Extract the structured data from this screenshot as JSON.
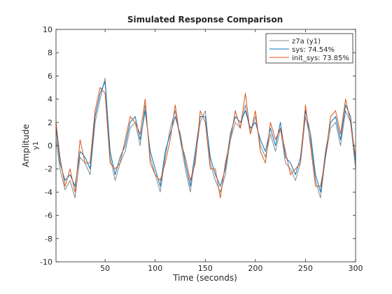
{
  "chart_data": {
    "type": "line",
    "title": "Simulated Response Comparison",
    "xlabel": "Time (seconds)",
    "ylabel": "Amplitude",
    "channel_label": "y1",
    "xlim": [
      1,
      300
    ],
    "ylim": [
      -10,
      10
    ],
    "x_ticks": [
      50,
      100,
      150,
      200,
      250,
      300
    ],
    "y_ticks": [
      -10,
      -8,
      -6,
      -4,
      -2,
      0,
      2,
      4,
      6,
      8,
      10
    ],
    "grid": false,
    "legend_position": "top-right",
    "x": [
      1,
      5,
      10,
      15,
      20,
      25,
      30,
      35,
      40,
      45,
      50,
      55,
      60,
      65,
      70,
      75,
      80,
      85,
      90,
      95,
      100,
      105,
      110,
      115,
      120,
      125,
      130,
      135,
      140,
      145,
      150,
      155,
      160,
      165,
      170,
      175,
      180,
      185,
      190,
      195,
      200,
      205,
      210,
      215,
      220,
      225,
      230,
      235,
      240,
      245,
      250,
      255,
      260,
      265,
      270,
      275,
      280,
      285,
      290,
      295,
      300
    ],
    "series": [
      {
        "name": "z7a (y1)",
        "color": "#7f8a91",
        "values": [
          0.5,
          -2.0,
          -3.8,
          -3.0,
          -4.5,
          -1.0,
          -1.5,
          -2.5,
          2.0,
          4.0,
          5.8,
          -1.0,
          -3.0,
          -1.5,
          -0.5,
          1.5,
          2.0,
          0.0,
          3.5,
          -1.0,
          -2.5,
          -4.0,
          -1.0,
          1.5,
          3.0,
          0.5,
          -2.0,
          -4.0,
          -1.0,
          2.0,
          3.0,
          -1.5,
          -3.0,
          -4.0,
          -2.5,
          0.5,
          2.0,
          1.5,
          3.5,
          1.0,
          2.5,
          0.0,
          -1.0,
          1.0,
          -0.5,
          1.5,
          -1.5,
          -2.0,
          -3.0,
          -1.5,
          2.5,
          0.5,
          -3.0,
          -4.5,
          -1.0,
          1.5,
          2.0,
          0.0,
          3.0,
          2.0,
          -2.0
        ]
      },
      {
        "name": "sys: 74.54%",
        "color": "#0072bd",
        "values": [
          1.5,
          -1.5,
          -3.0,
          -2.5,
          -3.5,
          -0.5,
          -1.0,
          -2.0,
          2.5,
          4.5,
          5.5,
          -0.5,
          -2.5,
          -1.0,
          0.0,
          2.0,
          2.5,
          0.5,
          3.0,
          -0.5,
          -2.0,
          -3.5,
          -0.5,
          1.0,
          2.5,
          1.0,
          -1.5,
          -3.5,
          -0.5,
          2.5,
          2.5,
          -1.0,
          -2.5,
          -3.5,
          -2.0,
          1.0,
          2.5,
          2.0,
          3.0,
          1.5,
          2.0,
          0.5,
          -0.5,
          1.5,
          0.0,
          2.0,
          -1.0,
          -1.5,
          -2.5,
          -1.0,
          3.0,
          1.0,
          -2.5,
          -4.0,
          -0.5,
          2.0,
          2.5,
          0.5,
          3.5,
          2.5,
          -1.5
        ]
      },
      {
        "name": "init_sys: 73.85%",
        "color": "#d95319",
        "values": [
          2.0,
          -1.0,
          -3.5,
          -2.0,
          -4.0,
          0.5,
          -1.5,
          -1.5,
          3.0,
          5.0,
          4.5,
          -1.5,
          -2.0,
          -1.5,
          0.5,
          2.5,
          2.0,
          1.0,
          4.0,
          -1.5,
          -2.5,
          -3.0,
          -1.5,
          0.5,
          3.5,
          0.5,
          -1.0,
          -3.0,
          -1.5,
          3.0,
          2.0,
          -2.0,
          -2.0,
          -4.5,
          -1.5,
          0.5,
          3.0,
          1.5,
          4.5,
          1.0,
          3.0,
          -0.5,
          -1.5,
          2.0,
          0.5,
          1.5,
          -0.5,
          -2.5,
          -2.0,
          -1.5,
          3.5,
          0.0,
          -3.5,
          -3.5,
          -1.0,
          2.5,
          3.0,
          1.0,
          4.0,
          2.0,
          -1.0
        ]
      }
    ]
  }
}
